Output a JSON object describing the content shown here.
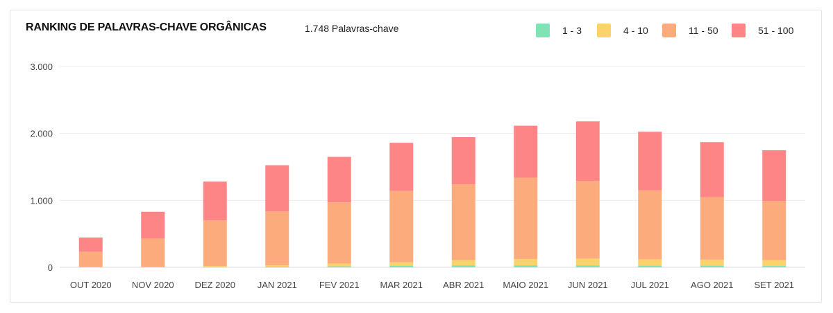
{
  "header": {
    "title": "RANKING DE PALAVRAS-CHAVE ORGÂNICAS",
    "keyword_count": "1.748 Palavras-chave"
  },
  "legend": [
    {
      "label": "1 - 3",
      "color": "#7fe3b5"
    },
    {
      "label": "4 - 10",
      "color": "#fcd36b"
    },
    {
      "label": "11 - 50",
      "color": "#fbab7c"
    },
    {
      "label": "51 - 100",
      "color": "#fd8585"
    }
  ],
  "chart_data": {
    "type": "bar",
    "stacked": true,
    "title": "RANKING DE PALAVRAS-CHAVE ORGÂNICAS",
    "categories": [
      "OUT 2020",
      "NOV 2020",
      "DEZ 2020",
      "JAN 2021",
      "FEV 2021",
      "MAR 2021",
      "ABR 2021",
      "MAIO 2021",
      "JUN 2021",
      "JUL 2021",
      "AGO 2021",
      "SET 2021"
    ],
    "series": [
      {
        "name": "1 - 3",
        "color": "#7fe3b5",
        "values": [
          0,
          0,
          5,
          10,
          15,
          25,
          30,
          30,
          30,
          25,
          25,
          20
        ]
      },
      {
        "name": "4 - 10",
        "color": "#fcd36b",
        "values": [
          5,
          5,
          15,
          20,
          40,
          50,
          75,
          95,
          100,
          95,
          90,
          85
        ]
      },
      {
        "name": "11 - 50",
        "color": "#fbab7c",
        "values": [
          225,
          425,
          680,
          805,
          915,
          1065,
          1135,
          1215,
          1160,
          1030,
          935,
          885
        ]
      },
      {
        "name": "51 - 100",
        "color": "#fd8585",
        "values": [
          215,
          400,
          580,
          690,
          680,
          720,
          705,
          775,
          890,
          875,
          820,
          758
        ]
      }
    ],
    "yticks": [
      0,
      1000,
      2000,
      3000
    ],
    "ytick_labels": [
      "0",
      "1.000",
      "2.000",
      "3.000"
    ],
    "ylim": [
      0,
      3000
    ],
    "grid": true,
    "xlabel": "",
    "ylabel": ""
  }
}
